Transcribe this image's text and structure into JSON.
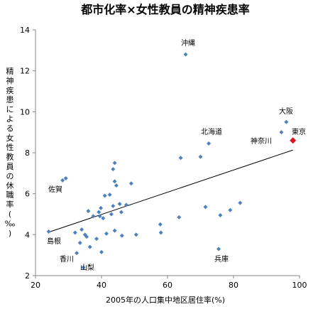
{
  "chart_data": {
    "type": "scatter",
    "title": "都市化率×女性教員の精神疾患率",
    "xlabel": "2005年の人口集中地区居住率(%)",
    "ylabel": "精神疾患による女性教員の休職率(‰)",
    "xlim": [
      20,
      100
    ],
    "ylim": [
      2,
      14
    ],
    "xticks": [
      20,
      40,
      60,
      80,
      100
    ],
    "yticks": [
      2,
      4,
      6,
      8,
      10,
      12,
      14
    ],
    "grid": false,
    "legend": "none",
    "point_color": "#4f81bd",
    "highlight_color": "#e0141e",
    "points": [
      {
        "x": 24.0,
        "y": 4.15
      },
      {
        "x": 28.2,
        "y": 6.65
      },
      {
        "x": 29.2,
        "y": 6.75
      },
      {
        "x": 32.0,
        "y": 4.1
      },
      {
        "x": 32.5,
        "y": 3.1
      },
      {
        "x": 33.5,
        "y": 3.6
      },
      {
        "x": 34.0,
        "y": 4.25
      },
      {
        "x": 34.5,
        "y": 2.4
      },
      {
        "x": 35.0,
        "y": 4.0
      },
      {
        "x": 35.5,
        "y": 3.9
      },
      {
        "x": 36.0,
        "y": 5.15
      },
      {
        "x": 36.5,
        "y": 3.4
      },
      {
        "x": 37.5,
        "y": 4.9
      },
      {
        "x": 38.5,
        "y": 3.8
      },
      {
        "x": 39.2,
        "y": 5.1
      },
      {
        "x": 39.5,
        "y": 4.9
      },
      {
        "x": 39.8,
        "y": 5.3
      },
      {
        "x": 40.0,
        "y": 3.15
      },
      {
        "x": 40.5,
        "y": 4.8
      },
      {
        "x": 41.0,
        "y": 5.9
      },
      {
        "x": 41.5,
        "y": 4.05
      },
      {
        "x": 42.5,
        "y": 5.95
      },
      {
        "x": 43.0,
        "y": 5.0
      },
      {
        "x": 43.5,
        "y": 7.2
      },
      {
        "x": 43.5,
        "y": 5.4
      },
      {
        "x": 44.0,
        "y": 7.5
      },
      {
        "x": 44.0,
        "y": 6.6
      },
      {
        "x": 44.0,
        "y": 4.2
      },
      {
        "x": 44.5,
        "y": 6.4
      },
      {
        "x": 45.5,
        "y": 5.5
      },
      {
        "x": 46.0,
        "y": 5.1
      },
      {
        "x": 46.2,
        "y": 3.95
      },
      {
        "x": 47.5,
        "y": 5.45
      },
      {
        "x": 49.0,
        "y": 6.5
      },
      {
        "x": 50.5,
        "y": 4.0
      },
      {
        "x": 57.8,
        "y": 4.5
      },
      {
        "x": 58.0,
        "y": 4.1
      },
      {
        "x": 63.5,
        "y": 4.85
      },
      {
        "x": 64.0,
        "y": 7.75
      },
      {
        "x": 65.5,
        "y": 12.8
      },
      {
        "x": 70.0,
        "y": 7.8
      },
      {
        "x": 71.5,
        "y": 5.35
      },
      {
        "x": 72.5,
        "y": 8.45
      },
      {
        "x": 75.5,
        "y": 3.3
      },
      {
        "x": 76.0,
        "y": 4.95
      },
      {
        "x": 79.0,
        "y": 5.2
      },
      {
        "x": 82.0,
        "y": 5.55
      },
      {
        "x": 94.5,
        "y": 9.0
      },
      {
        "x": 96.0,
        "y": 9.5
      }
    ],
    "highlight": [
      {
        "x": 98.0,
        "y": 8.6
      }
    ],
    "trendline": [
      {
        "x": 24,
        "y": 4.12
      },
      {
        "x": 98,
        "y": 8.13
      }
    ],
    "annotations": [
      {
        "text": "沖縄"
      },
      {
        "text": "大阪"
      },
      {
        "text": "北海道"
      },
      {
        "text": "東京"
      },
      {
        "text": "神奈川"
      },
      {
        "text": "佐賀"
      },
      {
        "text": "島根"
      },
      {
        "text": "香川"
      },
      {
        "text": "山梨"
      },
      {
        "text": "兵庫"
      }
    ]
  }
}
